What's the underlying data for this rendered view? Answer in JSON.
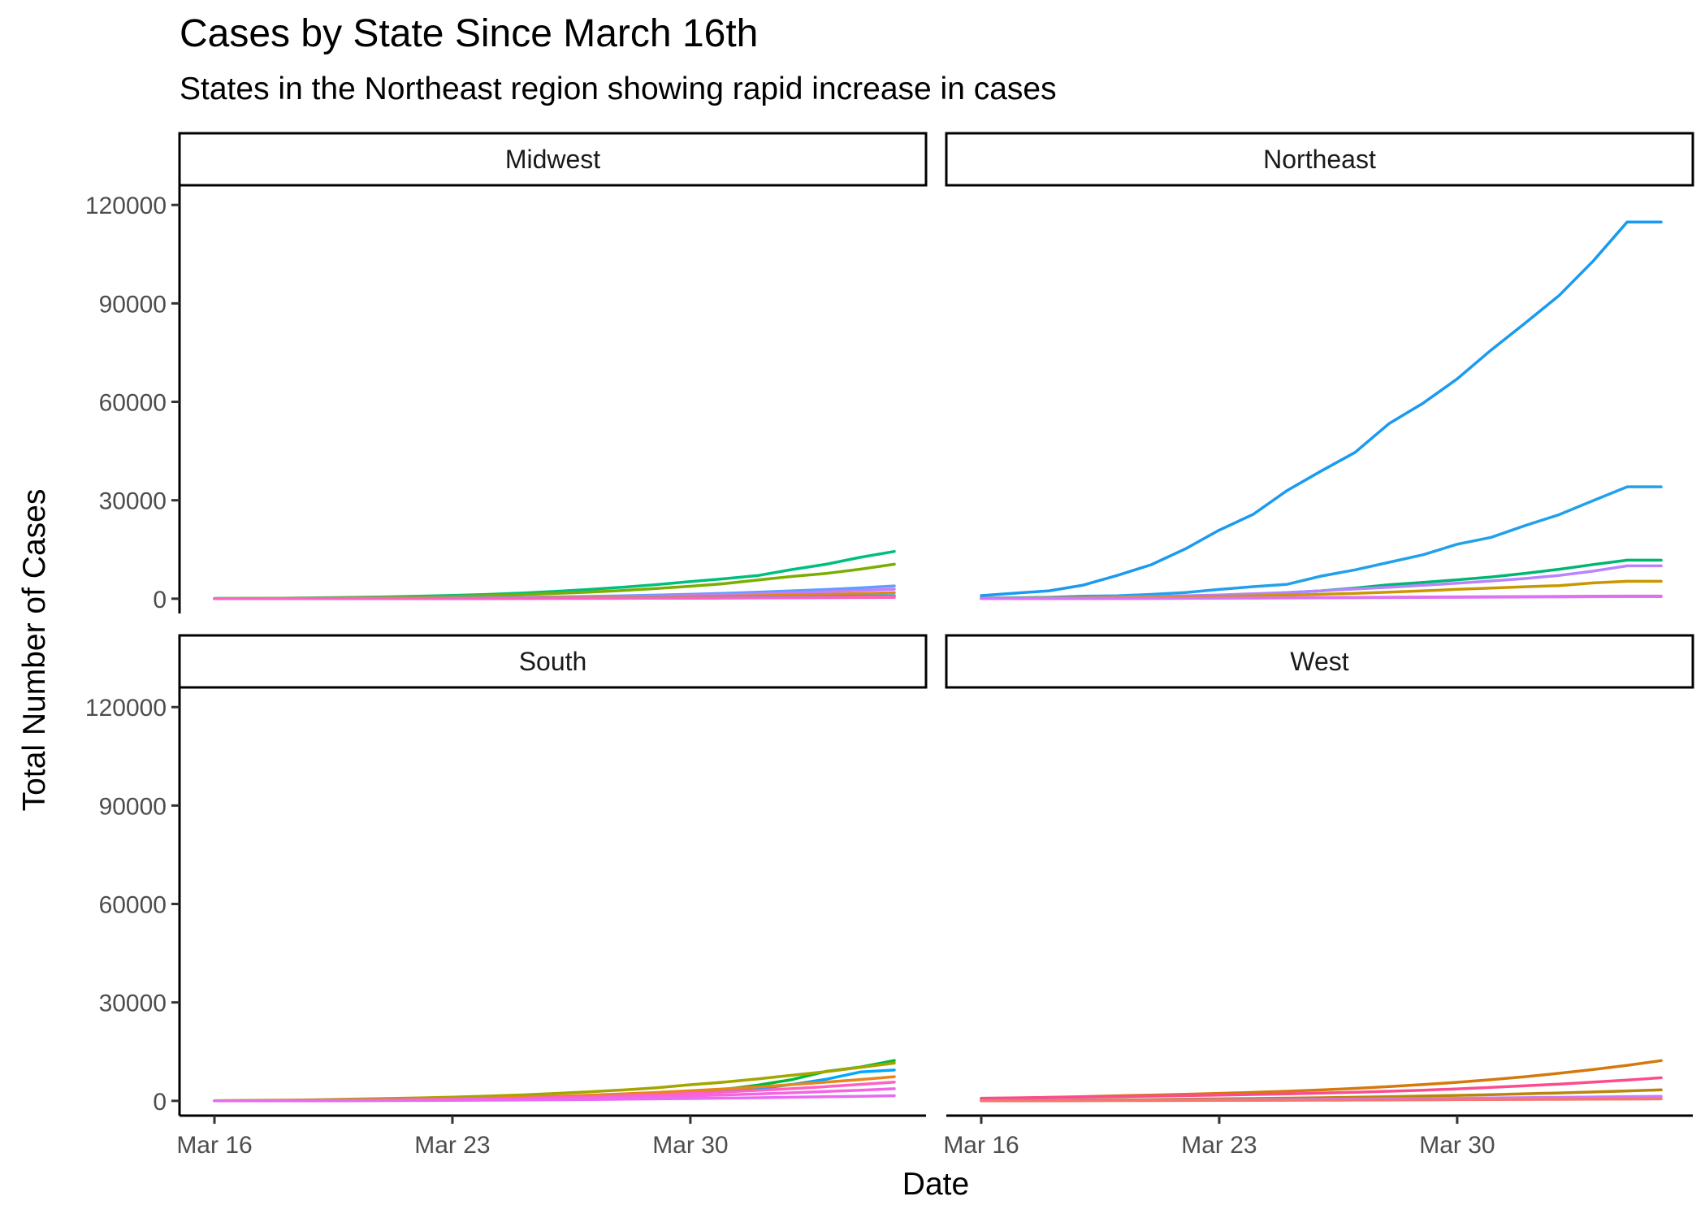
{
  "chart_data": {
    "type": "line",
    "title": "Cases by State Since March 16th",
    "subtitle": "States in the Northeast region showing rapid increase in cases",
    "xlabel": "Date",
    "ylabel": "Total Number of Cases",
    "ylim": [
      -4500,
      126000
    ],
    "y_ticks": [
      0,
      30000,
      60000,
      90000,
      120000
    ],
    "y_tick_labels": [
      "0",
      "30000",
      "60000",
      "90000",
      "120000"
    ],
    "x_dates": [
      "Mar 16",
      "Mar 17",
      "Mar 18",
      "Mar 19",
      "Mar 20",
      "Mar 21",
      "Mar 22",
      "Mar 23",
      "Mar 24",
      "Mar 25",
      "Mar 26",
      "Mar 27",
      "Mar 28",
      "Mar 29",
      "Mar 30",
      "Mar 31",
      "Apr 1",
      "Apr 2",
      "Apr 3",
      "Apr 4",
      "Apr 5"
    ],
    "x_ticks": [
      "Mar 16",
      "Mar 23",
      "Mar 30"
    ],
    "grid": false,
    "legend": "none",
    "facets": [
      {
        "name": "Midwest",
        "series": [
          {
            "color": "#00BF7D",
            "values": [
              70,
              110,
              160,
              250,
              380,
              540,
              750,
              1000,
              1300,
              1700,
              2200,
              2800,
              3500,
              4300,
              5200,
              6100,
              7100,
              8900,
              10500,
              12600,
              14400
            ]
          },
          {
            "color": "#7CAE00",
            "values": [
              50,
              80,
              120,
              180,
              270,
              390,
              540,
              730,
              960,
              1250,
              1600,
              2000,
              2500,
              3100,
              3800,
              4600,
              5700,
              6800,
              7700,
              9000,
              10500
            ]
          },
          {
            "color": "#619CFF",
            "values": [
              20,
              30,
              45,
              65,
              90,
              130,
              180,
              240,
              320,
              420,
              550,
              700,
              880,
              1100,
              1350,
              1650,
              2000,
              2400,
              2800,
              3300,
              3900
            ]
          },
          {
            "color": "#C77CFF",
            "values": [
              15,
              22,
              33,
              48,
              68,
              95,
              130,
              175,
              230,
              300,
              390,
              500,
              630,
              790,
              980,
              1200,
              1450,
              1750,
              2100,
              2500,
              2900
            ]
          },
          {
            "color": "#E68613",
            "values": [
              10,
              15,
              22,
              32,
              45,
              62,
              85,
              115,
              150,
              195,
              250,
              320,
              400,
              500,
              620,
              760,
              920,
              1100,
              1320,
              1560,
              1850
            ]
          },
          {
            "color": "#00B0F6",
            "values": [
              5,
              8,
              12,
              17,
              24,
              33,
              45,
              60,
              80,
              105,
              135,
              170,
              210,
              260,
              320,
              390,
              470,
              560,
              670,
              790,
              930
            ]
          },
          {
            "color": "#F8766D",
            "values": [
              5,
              7,
              10,
              14,
              19,
              26,
              35,
              47,
              62,
              80,
              100,
              125,
              155,
              190,
              230,
              275,
              325,
              380,
              440,
              505,
              575
            ]
          },
          {
            "color": "#FF61C3",
            "values": [
              3,
              5,
              7,
              10,
              14,
              19,
              25,
              33,
              43,
              55,
              70,
              88,
              108,
              132,
              160,
              192,
              228,
              268,
              312,
              360,
              412
            ]
          }
        ]
      },
      {
        "name": "Northeast",
        "series": [
          {
            "color": "#1A9AF0",
            "values": [
              950,
              1700,
              2400,
              4150,
              7100,
              10350,
              15150,
              20900,
              25700,
              33000,
              38900,
              44600,
              53400,
              59600,
              67000,
              75800,
              84000,
              92400,
              102900,
              114800,
              114800
            ]
          },
          {
            "color": "#22A0EC",
            "values": [
              180,
              270,
              430,
              740,
              890,
              1330,
              1900,
              2840,
              3680,
              4400,
              6900,
              8800,
              11100,
              13400,
              16600,
              18700,
              22300,
              25600,
              29900,
              34100,
              34100
            ]
          },
          {
            "color": "#00B670",
            "values": [
              164,
              197,
              256,
              328,
              413,
              525,
              646,
              777,
              1159,
              1838,
              2417,
              3240,
              4257,
              4955,
              5752,
              6620,
              7738,
              8966,
              10402,
              11736,
              11736
            ]
          },
          {
            "color": "#B983FF",
            "values": [
              100,
              150,
              220,
              330,
              480,
              660,
              880,
              1150,
              1500,
              1900,
              2400,
              2950,
              3500,
              4100,
              4700,
              5400,
              6150,
              7100,
              8400,
              10000,
              10000
            ]
          },
          {
            "color": "#C99800",
            "values": [
              60,
              90,
              140,
              210,
              300,
              420,
              560,
              720,
              900,
              1100,
              1350,
              1650,
              2000,
              2400,
              2850,
              3250,
              3650,
              4000,
              4800,
              5300,
              5300
            ]
          },
          {
            "color": "#FF6C91",
            "values": [
              10,
              20,
              30,
              50,
              80,
              110,
              150,
              200,
              250,
              300,
              350,
              400,
              450,
              500,
              550,
              600,
              650,
              700,
              750,
              800,
              800
            ]
          },
          {
            "color": "#DB72FB",
            "values": [
              8,
              15,
              25,
              40,
              60,
              85,
              115,
              150,
              190,
              230,
              270,
              310,
              350,
              390,
              430,
              470,
              510,
              550,
              590,
              630,
              630
            ]
          }
        ]
      },
      {
        "name": "South",
        "series": [
          {
            "color": "#00A9FF",
            "values": [
              5,
              10,
              20,
              40,
              80,
              130,
              200,
              290,
              400,
              540,
              720,
              950,
              1250,
              1650,
              2150,
              2800,
              3700,
              5000,
              6600,
              8800,
              9400
            ]
          },
          {
            "color": "#00BA38",
            "values": [
              20,
              40,
              70,
              120,
              190,
              280,
              400,
              550,
              730,
              950,
              1200,
              1500,
              1850,
              2250,
              2700,
              3500,
              4800,
              6500,
              9000,
              10300,
              12300
            ]
          },
          {
            "color": "#A3A500",
            "values": [
              60,
              120,
              210,
              340,
              500,
              690,
              900,
              1150,
              1450,
              1800,
              2250,
              2750,
              3300,
              4000,
              4900,
              5700,
              6700,
              7800,
              8900,
              10200,
              11500
            ]
          },
          {
            "color": "#E7861B",
            "values": [
              40,
              70,
              110,
              170,
              250,
              350,
              480,
              640,
              840,
              1080,
              1370,
              1710,
              2110,
              2560,
              3070,
              3640,
              4270,
              4960,
              5700,
              6500,
              7350
            ]
          },
          {
            "color": "#FF61C3",
            "values": [
              20,
              35,
              60,
              100,
              160,
              240,
              340,
              460,
              610,
              790,
              1000,
              1250,
              1540,
              1880,
              2270,
              2710,
              3200,
              3750,
              4350,
              5000,
              5700
            ]
          },
          {
            "color": "#F564E3",
            "values": [
              10,
              20,
              35,
              60,
              95,
              145,
              210,
              290,
              390,
              510,
              650,
              820,
              1020,
              1250,
              1510,
              1800,
              2120,
              2470,
              2850,
              3260,
              3700
            ]
          },
          {
            "color": "#E76BF3",
            "values": [
              5,
              10,
              18,
              30,
              48,
              72,
              104,
              145,
              195,
              255,
              325,
              405,
              495,
              595,
              705,
              825,
              955,
              1095,
              1245,
              1405,
              1575
            ]
          }
        ]
      },
      {
        "name": "West",
        "series": [
          {
            "color": "#D4790C",
            "values": [
              640,
              860,
              1080,
              1300,
              1530,
              1770,
              2020,
              2290,
              2590,
              2930,
              3320,
              3790,
              4330,
              4950,
              5660,
              6460,
              7370,
              8390,
              9540,
              10830,
              12270
            ]
          },
          {
            "color": "#FC4C8E",
            "values": [
              800,
              920,
              1040,
              1170,
              1300,
              1440,
              1590,
              1750,
              1930,
              2130,
              2360,
              2620,
              2920,
              3260,
              3650,
              4090,
              4580,
              5120,
              5710,
              6350,
              7050
            ]
          },
          {
            "color": "#B8860B",
            "values": [
              100,
              140,
              190,
              250,
              320,
              400,
              490,
              590,
              700,
              820,
              950,
              1100,
              1270,
              1460,
              1670,
              1900,
              2150,
              2420,
              2710,
              3020,
              3350
            ]
          },
          {
            "color": "#C77CFF",
            "values": [
              50,
              70,
              95,
              125,
              160,
              200,
              245,
              295,
              350,
              410,
              475,
              545,
              620,
              700,
              785,
              875,
              970,
              1070,
              1175,
              1285,
              1400
            ]
          },
          {
            "color": "#F8766D",
            "values": [
              20,
              30,
              42,
              56,
              72,
              90,
              110,
              132,
              156,
              182,
              210,
              240,
              272,
              306,
              342,
              380,
              420,
              462,
              506,
              552,
              600
            ]
          }
        ]
      }
    ]
  }
}
